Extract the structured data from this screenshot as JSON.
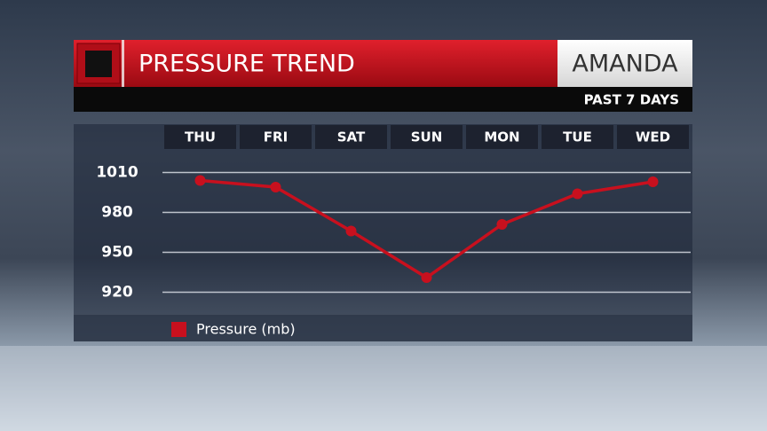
{
  "chart_data": {
    "type": "line",
    "title": "PRESSURE TREND",
    "label": "AMANDA",
    "subtitle": "PAST 7 DAYS",
    "categories": [
      "THU",
      "FRI",
      "SAT",
      "SUN",
      "MON",
      "TUE",
      "WED"
    ],
    "series": [
      {
        "name": "Pressure (mb)",
        "color": "#c8101e",
        "values": [
          1004,
          999,
          966,
          931,
          971,
          994,
          1003
        ]
      }
    ],
    "ylim": [
      905,
      1025
    ],
    "yticks": [
      920,
      950,
      980,
      1010
    ],
    "grid": true,
    "legend": "bottom-left"
  }
}
